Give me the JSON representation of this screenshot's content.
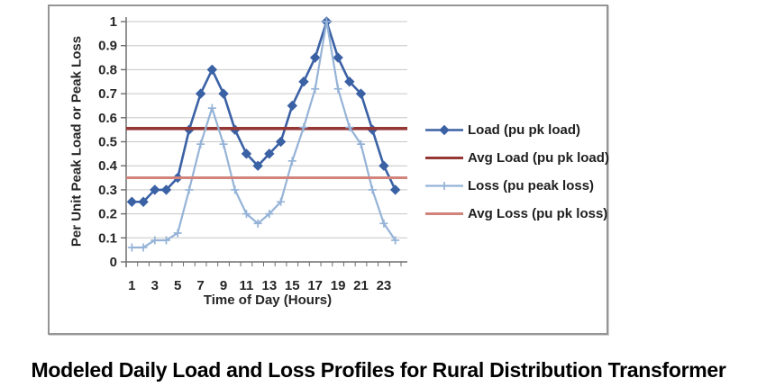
{
  "caption": {
    "text": "Modeled Daily Load and Loss Profiles for Rural Distribution Transformer"
  },
  "chart_data": {
    "type": "line",
    "title": "",
    "xlabel": "Time of Day (Hours)",
    "ylabel": "Per Unit Peak Load or Peak Loss",
    "x": [
      1,
      2,
      3,
      4,
      5,
      6,
      7,
      8,
      9,
      10,
      11,
      12,
      13,
      14,
      15,
      16,
      17,
      18,
      19,
      20,
      21,
      22,
      23,
      24
    ],
    "xticklabels": [
      "1",
      "3",
      "5",
      "7",
      "9",
      "11",
      "13",
      "15",
      "17",
      "19",
      "21",
      "23"
    ],
    "yticks": [
      0,
      0.1,
      0.2,
      0.3,
      0.4,
      0.5,
      0.6,
      0.7,
      0.8,
      0.9,
      1
    ],
    "yticklabels": [
      "0",
      "0.1",
      "0.2",
      "0.3",
      "0.4",
      "0.5",
      "0.6",
      "0.7",
      "0.8",
      "0.9",
      "1"
    ],
    "ylim": [
      0,
      1
    ],
    "grid": true,
    "legend_position": "right",
    "colors": {
      "grid": "#C6C6C6",
      "axis": "#6E6E6E",
      "text": "#262626"
    },
    "series": [
      {
        "name": "Load (pu pk load)",
        "color": "#3B61A5",
        "marker": "diamond",
        "width": 2.6,
        "values": [
          0.25,
          0.25,
          0.3,
          0.3,
          0.35,
          0.55,
          0.7,
          0.8,
          0.7,
          0.55,
          0.45,
          0.4,
          0.45,
          0.5,
          0.65,
          0.75,
          0.85,
          1.0,
          0.85,
          0.75,
          0.7,
          0.55,
          0.4,
          0.3
        ]
      },
      {
        "name": "Avg Load (pu pk load)",
        "color": "#953735",
        "marker": "none",
        "width": 3.6,
        "hline": 0.555
      },
      {
        "name": "Loss (pu peak loss)",
        "color": "#95B3D7",
        "marker": "plus",
        "width": 2.2,
        "values": [
          0.06,
          0.06,
          0.09,
          0.09,
          0.12,
          0.3,
          0.49,
          0.64,
          0.49,
          0.3,
          0.2,
          0.16,
          0.2,
          0.25,
          0.42,
          0.56,
          0.72,
          1.0,
          0.72,
          0.56,
          0.49,
          0.3,
          0.16,
          0.09
        ]
      },
      {
        "name": "Avg Loss (pu pk loss)",
        "color": "#D2837B",
        "marker": "none",
        "width": 3,
        "hline": 0.35
      }
    ]
  }
}
